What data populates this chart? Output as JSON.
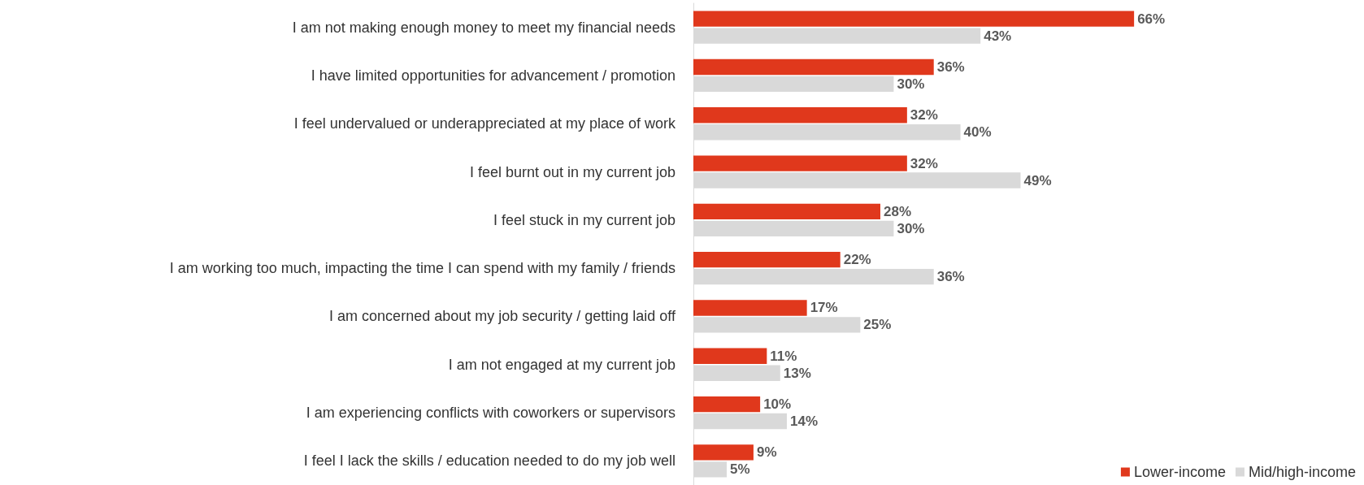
{
  "chart_data": {
    "type": "bar",
    "orientation": "horizontal",
    "categories": [
      "I am not making enough money to meet my financial needs",
      "I have limited opportunities for advancement / promotion",
      "I feel undervalued or underappreciated at my place of work",
      "I feel burnt out in my current job",
      "I feel stuck in my current job",
      "I am working too much, impacting the time I can spend with my family / friends",
      "I am concerned about my job security / getting laid off",
      "I am not engaged at my current job",
      "I am experiencing conflicts with coworkers or supervisors",
      "I feel I lack the skills / education needed to do my job well"
    ],
    "series": [
      {
        "name": "Lower-income",
        "color": "#e0381c",
        "values": [
          66,
          36,
          32,
          32,
          28,
          22,
          17,
          11,
          10,
          9
        ],
        "value_labels": [
          "66%",
          "36%",
          "32%",
          "32%",
          "28%",
          "22%",
          "17%",
          "11%",
          "10%",
          "9%"
        ]
      },
      {
        "name": "Mid/high-income",
        "color": "#d9d9d9",
        "values": [
          43,
          30,
          40,
          49,
          30,
          36,
          25,
          13,
          14,
          5
        ],
        "value_labels": [
          "43%",
          "30%",
          "40%",
          "49%",
          "30%",
          "36%",
          "25%",
          "13%",
          "14%",
          "5%"
        ]
      }
    ],
    "legend": "bottom right"
  }
}
